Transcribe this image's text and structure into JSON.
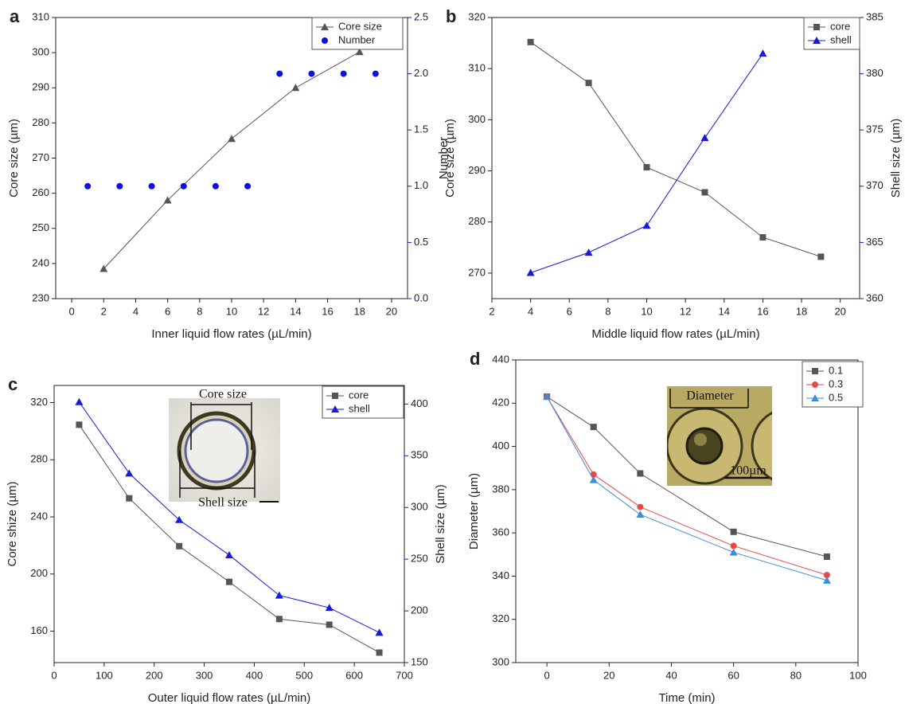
{
  "chart_data": [
    {
      "type": "line",
      "panel_label": "a",
      "xlabel": "Inner liquid flow rates (µL/min)",
      "ylabel": "Core size (µm)",
      "y2label": "Number",
      "xlim": [
        -1,
        21
      ],
      "xticks": [
        0,
        2,
        4,
        6,
        8,
        10,
        12,
        14,
        16,
        18,
        20
      ],
      "ylim": [
        230,
        310
      ],
      "yticks": [
        230,
        240,
        250,
        260,
        270,
        280,
        290,
        300,
        310
      ],
      "y2lim": [
        0,
        2.5
      ],
      "y2ticks": [
        {
          "value": 0,
          "label": "0.0"
        },
        0.5,
        {
          "value": 1,
          "label": "1.0"
        },
        1.5,
        {
          "value": 2,
          "label": "2.0"
        },
        2.5
      ],
      "y2_color": "#1a1aa0",
      "legend": "top-right",
      "series": [
        {
          "name": "Core size",
          "color": "#555555",
          "marker": "triangle",
          "line": true,
          "x": [
            2,
            6,
            10,
            14,
            18
          ],
          "values": [
            238.5,
            258,
            275.5,
            290,
            300.2
          ]
        },
        {
          "name": "Number",
          "color": "#1010dd",
          "marker": "circle",
          "line": false,
          "axis": "y2",
          "x": [
            1,
            3,
            5,
            7,
            9,
            11,
            13,
            15,
            17,
            19
          ],
          "values": [
            1,
            1,
            1,
            1,
            1,
            1,
            2,
            2,
            2,
            2
          ]
        }
      ]
    },
    {
      "type": "line",
      "panel_label": "b",
      "xlabel": "Middle liquid flow rates (µL/min)",
      "ylabel": "Core size (µm)",
      "y2label": "Shell size (µm)",
      "xlim": [
        2,
        21
      ],
      "xticks": [
        2,
        4,
        6,
        8,
        10,
        12,
        14,
        16,
        18,
        20
      ],
      "ylim": [
        265,
        320
      ],
      "yticks": [
        270,
        280,
        290,
        300,
        310,
        320
      ],
      "y2lim": [
        360,
        385
      ],
      "y2ticks": [
        360,
        365,
        370,
        375,
        380,
        385
      ],
      "y2_color": "#1a1aa0",
      "legend": "top-right",
      "series": [
        {
          "name": "core",
          "color": "#555555",
          "marker": "square",
          "line": true,
          "x": [
            4,
            7,
            10,
            13,
            16,
            19
          ],
          "values": [
            315.2,
            307.2,
            290.7,
            285.8,
            277,
            273.2
          ]
        },
        {
          "name": "shell",
          "color": "#1a1ad0",
          "marker": "triangle",
          "line": true,
          "axis": "y2",
          "x": [
            4,
            7,
            10,
            13,
            16
          ],
          "values": [
            362.3,
            364.1,
            366.5,
            374.3,
            381.8
          ]
        }
      ]
    },
    {
      "type": "line",
      "panel_label": "c",
      "xlabel": "Outer liquid flow rates (µL/min)",
      "ylabel": "Core shize (µm)",
      "y2label": "Shell size (µm)",
      "xlim": [
        0,
        700
      ],
      "xticks": [
        0,
        100,
        200,
        300,
        400,
        500,
        600,
        700
      ],
      "ylim": [
        138,
        332
      ],
      "yticks": [
        160,
        200,
        240,
        280,
        320
      ],
      "y2lim": [
        150,
        418
      ],
      "y2ticks": [
        150,
        200,
        250,
        300,
        350,
        400
      ],
      "y2_color": "#1a1aa0",
      "legend": "top-right",
      "annotations": [
        "Core size",
        "Shell size"
      ],
      "series": [
        {
          "name": "core",
          "color": "#555555",
          "marker": "square",
          "line": true,
          "x": [
            50,
            150,
            250,
            350,
            450,
            550,
            650
          ],
          "values": [
            304.5,
            253,
            219.5,
            194.5,
            168.5,
            164.5,
            145
          ]
        },
        {
          "name": "shell",
          "color": "#1a1ad0",
          "marker": "triangle",
          "line": true,
          "axis": "y2",
          "x": [
            50,
            150,
            250,
            350,
            450,
            550,
            650
          ],
          "values": [
            402,
            333,
            288,
            254,
            215,
            203,
            179
          ]
        }
      ]
    },
    {
      "type": "line",
      "panel_label": "d",
      "xlabel": "Time (min)",
      "ylabel": "Diameter (µm)",
      "xlim": [
        -10,
        100
      ],
      "xticks": [
        0,
        20,
        40,
        60,
        80,
        100
      ],
      "ylim": [
        300,
        440
      ],
      "yticks": [
        300,
        320,
        340,
        360,
        380,
        400,
        420,
        440
      ],
      "legend": "top-right",
      "annotations": [
        "Diameter",
        "100µm"
      ],
      "series": [
        {
          "name": "0.1",
          "color": "#555555",
          "marker": "square",
          "line": true,
          "x": [
            0,
            15,
            30,
            60,
            90
          ],
          "values": [
            423,
            409,
            387.5,
            360.5,
            349
          ]
        },
        {
          "name": "0.3",
          "color": "#e8474a",
          "marker": "circle",
          "line": true,
          "x": [
            0,
            15,
            30,
            60,
            90
          ],
          "values": [
            423,
            387,
            372,
            354,
            340.5
          ]
        },
        {
          "name": "0.5",
          "color": "#3b8ed8",
          "marker": "triangle",
          "line": true,
          "x": [
            0,
            15,
            30,
            60,
            90
          ],
          "values": [
            423,
            384.5,
            368.5,
            351,
            338
          ]
        }
      ]
    }
  ]
}
